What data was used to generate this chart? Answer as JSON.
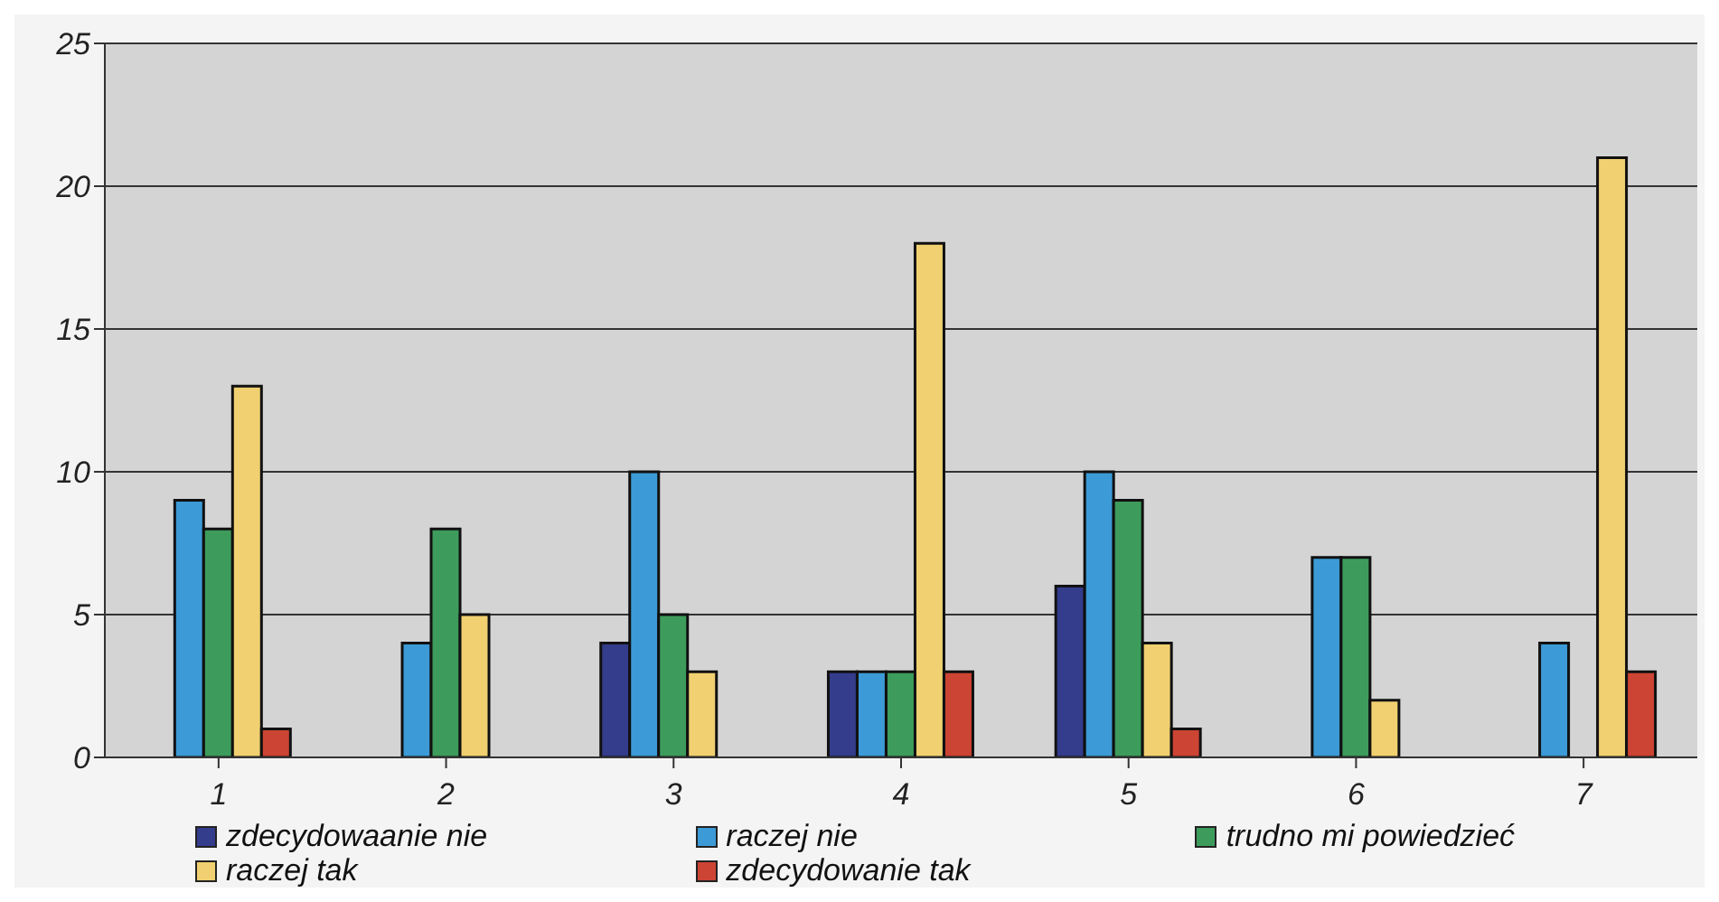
{
  "chart_data": {
    "type": "bar",
    "categories": [
      "1",
      "2",
      "3",
      "4",
      "5",
      "6",
      "7"
    ],
    "series": [
      {
        "name": "zdecydowaanie nie",
        "color": "#343c8c",
        "values": [
          0,
          0,
          4,
          3,
          6,
          0,
          0
        ]
      },
      {
        "name": "raczej nie",
        "color": "#3c9ad6",
        "values": [
          9,
          4,
          10,
          3,
          10,
          7,
          4
        ]
      },
      {
        "name": "trudno mi powiedzieć",
        "color": "#3d9c5c",
        "values": [
          8,
          8,
          5,
          3,
          9,
          7,
          0
        ]
      },
      {
        "name": "raczej tak",
        "color": "#f0d070",
        "values": [
          13,
          5,
          3,
          18,
          4,
          2,
          21
        ]
      },
      {
        "name": "zdecydowanie tak",
        "color": "#cc4433",
        "values": [
          1,
          0,
          0,
          3,
          1,
          0,
          3
        ]
      }
    ],
    "ylim": [
      0,
      25
    ],
    "yticks": [
      0,
      5,
      10,
      15,
      20,
      25
    ],
    "grid": "y",
    "legend": "bottom"
  }
}
